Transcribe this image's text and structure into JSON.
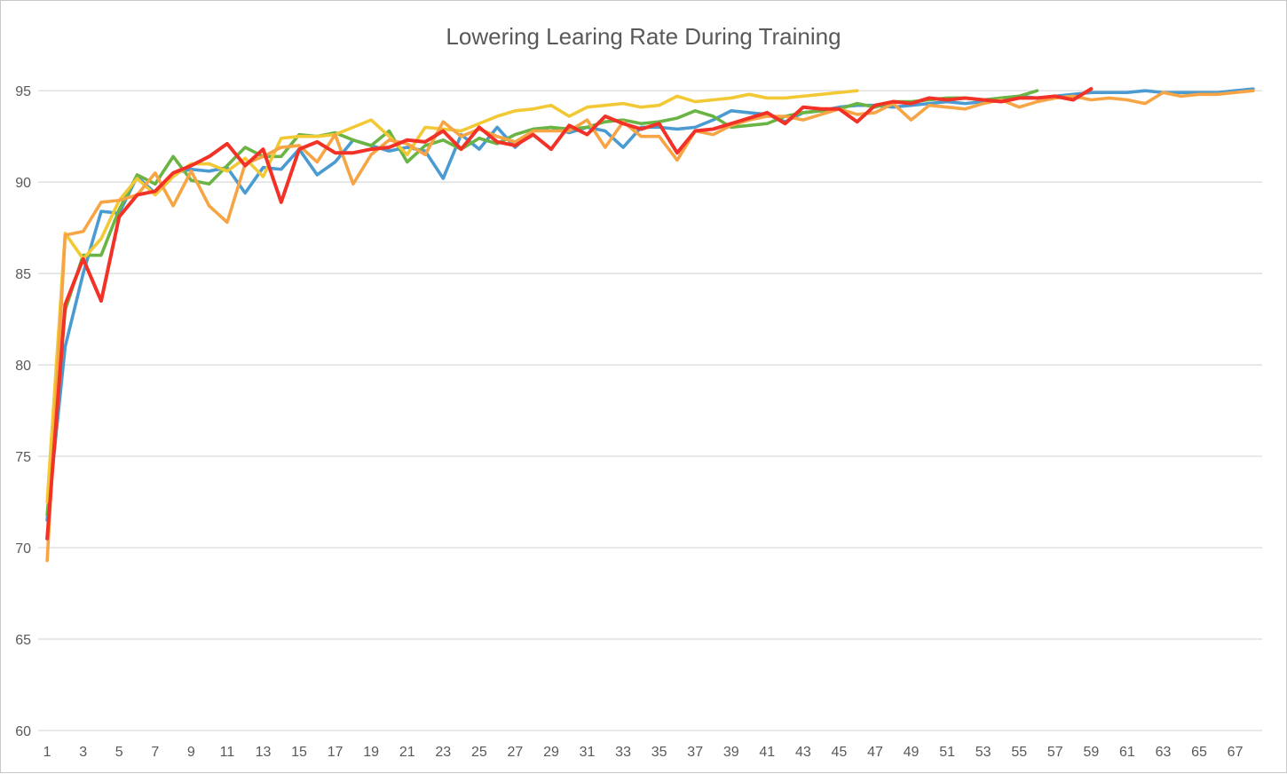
{
  "chart_data": {
    "type": "line",
    "title": "Lowering Learing Rate During Training",
    "xlabel": "",
    "ylabel": "",
    "ylim": [
      60,
      97
    ],
    "yticks": [
      60,
      65,
      70,
      75,
      80,
      85,
      90,
      95
    ],
    "xticks": [
      1,
      3,
      5,
      7,
      9,
      11,
      13,
      15,
      17,
      19,
      21,
      23,
      25,
      27,
      29,
      31,
      33,
      35,
      37,
      39,
      41,
      43,
      45,
      47,
      49,
      51,
      53,
      55,
      57,
      59,
      61,
      63,
      65,
      67
    ],
    "grid": true,
    "legend": "none",
    "series": [
      {
        "color": "#4a9bd1",
        "values": [
          71.5,
          81.0,
          85.0,
          88.4,
          88.3,
          90.3,
          89.4,
          90.5,
          90.7,
          90.6,
          90.8,
          89.4,
          90.8,
          90.7,
          91.8,
          90.4,
          91.1,
          92.3,
          92.0,
          91.7,
          91.9,
          91.7,
          90.2,
          92.6,
          91.8,
          93.0,
          91.9,
          92.8,
          93.0,
          92.7,
          93.0,
          92.8,
          91.9,
          93.0,
          93.0,
          92.9,
          93.0,
          93.4,
          93.9,
          93.8,
          93.7,
          93.3,
          93.8,
          93.9,
          94.1,
          94.2,
          94.2,
          94.1,
          94.2,
          94.3,
          94.4,
          94.3,
          94.4,
          94.6,
          94.7,
          94.6,
          94.7,
          94.8,
          94.9,
          94.9,
          94.9,
          95.0,
          94.9,
          94.9,
          94.9,
          94.9,
          95.0,
          95.1
        ]
      },
      {
        "color": "#6ab444",
        "values": [
          71.8,
          83.0,
          86.0,
          86.0,
          88.5,
          90.4,
          89.9,
          91.4,
          90.1,
          89.9,
          90.9,
          91.9,
          91.4,
          91.4,
          92.6,
          92.5,
          92.7,
          92.3,
          92.0,
          92.8,
          91.1,
          92.0,
          92.3,
          91.8,
          92.4,
          92.1,
          92.6,
          92.9,
          93.0,
          92.9,
          93.0,
          93.3,
          93.4,
          93.2,
          93.3,
          93.5,
          93.9,
          93.6,
          93.0,
          93.1,
          93.2,
          93.6,
          93.8,
          93.9,
          94.0,
          94.3,
          94.1,
          94.4,
          94.4,
          94.5,
          94.6,
          94.6,
          94.5,
          94.6,
          94.7,
          95.0
        ]
      },
      {
        "color": "#f2c935",
        "values": [
          72.5,
          87.2,
          85.8,
          86.9,
          89.0,
          90.2,
          89.3,
          90.3,
          91.0,
          91.0,
          90.6,
          91.3,
          90.3,
          92.4,
          92.5,
          92.5,
          92.6,
          93.0,
          93.4,
          92.5,
          91.5,
          93.0,
          92.9,
          92.8,
          93.2,
          93.6,
          93.9,
          94.0,
          94.2,
          93.6,
          94.1,
          94.2,
          94.3,
          94.1,
          94.2,
          94.7,
          94.4,
          94.5,
          94.6,
          94.8,
          94.6,
          94.6,
          94.7,
          94.8,
          94.9,
          95.0
        ]
      },
      {
        "color": "#f7a445",
        "values": [
          69.3,
          87.1,
          87.3,
          88.9,
          89.0,
          89.3,
          90.5,
          88.7,
          90.6,
          88.7,
          87.8,
          91.0,
          91.4,
          91.9,
          92.0,
          91.1,
          92.6,
          89.9,
          91.5,
          92.3,
          92.1,
          91.5,
          93.3,
          92.5,
          92.9,
          92.5,
          92.2,
          92.8,
          92.8,
          92.8,
          93.4,
          91.9,
          93.3,
          92.5,
          92.5,
          91.2,
          92.8,
          92.6,
          93.1,
          93.4,
          93.6,
          93.6,
          93.4,
          93.7,
          94.0,
          93.7,
          93.8,
          94.3,
          93.4,
          94.2,
          94.1,
          94.0,
          94.3,
          94.5,
          94.1,
          94.4,
          94.6,
          94.7,
          94.5,
          94.6,
          94.5,
          94.3,
          94.9,
          94.7,
          94.8,
          94.8,
          94.9,
          95.0
        ]
      },
      {
        "color": "#f23127",
        "values": [
          70.5,
          83.3,
          85.8,
          83.5,
          88.1,
          89.3,
          89.5,
          90.5,
          90.9,
          91.4,
          92.1,
          90.9,
          91.8,
          88.9,
          91.8,
          92.2,
          91.6,
          91.6,
          91.8,
          91.9,
          92.3,
          92.2,
          92.8,
          91.8,
          93.0,
          92.2,
          92.0,
          92.6,
          91.8,
          93.1,
          92.6,
          93.6,
          93.2,
          92.9,
          93.2,
          91.6,
          92.8,
          92.9,
          93.2,
          93.5,
          93.8,
          93.2,
          94.1,
          94.0,
          94.0,
          93.3,
          94.2,
          94.4,
          94.3,
          94.6,
          94.5,
          94.6,
          94.5,
          94.4,
          94.6,
          94.6,
          94.7,
          94.5,
          95.1
        ]
      }
    ]
  }
}
